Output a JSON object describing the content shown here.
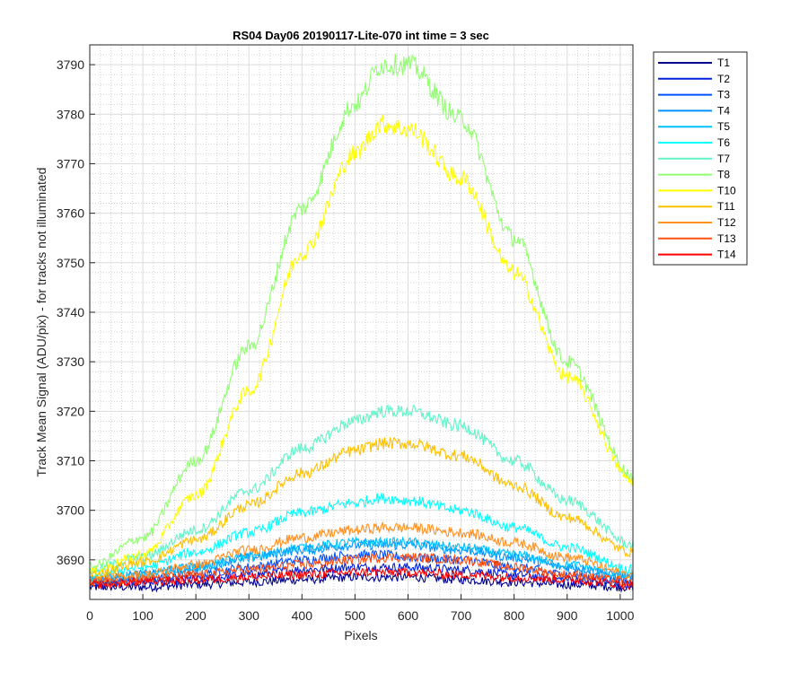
{
  "chart_data": {
    "type": "line",
    "title": "RS04 Day06 20190117-Lite-070 int time = 3 sec",
    "xlabel": "Pixels",
    "ylabel": "Track Mean Signal (ADU/pix) - for tracks not illuminated",
    "xlim": [
      0,
      1024
    ],
    "ylim": [
      3682,
      3794
    ],
    "x_ticks": [
      0,
      100,
      200,
      300,
      400,
      500,
      600,
      700,
      800,
      900,
      1000
    ],
    "y_ticks": [
      3690,
      3700,
      3710,
      3720,
      3730,
      3740,
      3750,
      3760,
      3770,
      3780,
      3790
    ],
    "grid": "on (major and minor)",
    "legend_position": "outside-top-right",
    "x": [
      0,
      100,
      200,
      300,
      400,
      500,
      550,
      600,
      700,
      800,
      900,
      1024
    ],
    "series": [
      {
        "name": "T1",
        "color": "#00008f",
        "values": [
          3684.5,
          3684.5,
          3685.0,
          3685.5,
          3686.0,
          3686.5,
          3686.5,
          3686.5,
          3686.0,
          3685.5,
          3685.0,
          3684.5
        ]
      },
      {
        "name": "T2",
        "color": "#0020dc",
        "values": [
          3685.0,
          3685.5,
          3686.0,
          3687.0,
          3688.0,
          3688.5,
          3688.5,
          3688.5,
          3688.0,
          3687.0,
          3686.0,
          3685.0
        ]
      },
      {
        "name": "T3",
        "color": "#0050ff",
        "values": [
          3685.5,
          3686.0,
          3687.0,
          3688.5,
          3690.0,
          3691.0,
          3691.0,
          3690.5,
          3690.0,
          3688.5,
          3687.0,
          3685.5
        ]
      },
      {
        "name": "T4",
        "color": "#0090ff",
        "values": [
          3686.0,
          3687.0,
          3688.5,
          3690.5,
          3692.0,
          3693.0,
          3693.0,
          3693.0,
          3692.0,
          3690.5,
          3688.5,
          3686.5
        ]
      },
      {
        "name": "T5",
        "color": "#00c0ff",
        "values": [
          3686.0,
          3687.0,
          3688.5,
          3690.5,
          3692.5,
          3693.5,
          3693.5,
          3693.5,
          3692.5,
          3691.0,
          3689.0,
          3686.5
        ]
      },
      {
        "name": "T6",
        "color": "#00ffff",
        "values": [
          3687.0,
          3688.5,
          3691.5,
          3695.5,
          3699.5,
          3701.5,
          3702.5,
          3702.0,
          3700.0,
          3696.5,
          3692.5,
          3688.0
        ]
      },
      {
        "name": "T7",
        "color": "#5ff5c8",
        "values": [
          3688.0,
          3690.5,
          3696.0,
          3704.0,
          3712.5,
          3718.0,
          3720.0,
          3720.0,
          3717.0,
          3710.0,
          3702.0,
          3693.0
        ]
      },
      {
        "name": "T8",
        "color": "#90ff70",
        "values": [
          3688.5,
          3694.5,
          3710.0,
          3733.0,
          3761.0,
          3782.0,
          3790.0,
          3790.0,
          3779.0,
          3755.0,
          3730.0,
          3707.0
        ]
      },
      {
        "name": "T10",
        "color": "#ffff00",
        "values": [
          3687.5,
          3691.0,
          3703.0,
          3724.0,
          3752.0,
          3772.0,
          3778.0,
          3777.0,
          3767.0,
          3748.0,
          3727.0,
          3706.0
        ]
      },
      {
        "name": "T11",
        "color": "#ffc000",
        "values": [
          3687.0,
          3689.5,
          3694.0,
          3701.0,
          3707.5,
          3712.0,
          3713.5,
          3713.5,
          3711.0,
          3705.0,
          3698.5,
          3691.5
        ]
      },
      {
        "name": "T12",
        "color": "#ff9020",
        "values": [
          3686.0,
          3687.0,
          3689.0,
          3692.0,
          3694.5,
          3696.0,
          3696.5,
          3696.5,
          3695.5,
          3693.5,
          3690.5,
          3687.0
        ]
      },
      {
        "name": "T13",
        "color": "#ff5010",
        "values": [
          3685.5,
          3686.0,
          3687.0,
          3688.0,
          3689.0,
          3690.0,
          3690.5,
          3690.5,
          3690.0,
          3688.5,
          3687.0,
          3685.5
        ]
      },
      {
        "name": "T14",
        "color": "#ff0000",
        "values": [
          3685.0,
          3685.5,
          3686.0,
          3686.5,
          3687.0,
          3687.5,
          3687.5,
          3687.5,
          3687.0,
          3686.5,
          3686.0,
          3685.0
        ]
      }
    ]
  }
}
